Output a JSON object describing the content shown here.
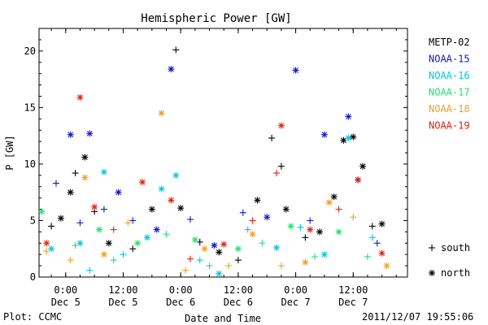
{
  "chart_data": {
    "type": "scatter",
    "title": "Hemispheric Power [GW]",
    "xlabel": "Date and Time",
    "ylabel": "P [GW]",
    "ylim": [
      0,
      22
    ],
    "xlim": [
      "2011-12-04 18:26",
      "2011-12-07 23:20"
    ],
    "yticks": [
      0,
      5,
      10,
      15,
      20
    ],
    "xticks": [
      {
        "time": "2011-12-05 00:00",
        "line1": "0:00",
        "line2": "Dec 5"
      },
      {
        "time": "2011-12-05 12:00",
        "line1": "12:00",
        "line2": "Dec 5"
      },
      {
        "time": "2011-12-06 00:00",
        "line1": "0:00",
        "line2": "Dec 6"
      },
      {
        "time": "2011-12-06 12:00",
        "line1": "12:00",
        "line2": "Dec 6"
      },
      {
        "time": "2011-12-07 00:00",
        "line1": "0:00",
        "line2": "Dec 7"
      },
      {
        "time": "2011-12-07 12:00",
        "line1": "12:00",
        "line2": "Dec 7"
      }
    ],
    "hemisphere_key": [
      {
        "symbol": "+",
        "label": "south"
      },
      {
        "symbol": "*",
        "label": "north"
      }
    ],
    "series": [
      {
        "name": "METP-02",
        "color": "#000000",
        "points": [
          {
            "x": "2011-12-04 21:00",
            "y": 4.5,
            "h": "south"
          },
          {
            "x": "2011-12-04 23:00",
            "y": 5.2,
            "h": "north"
          },
          {
            "x": "2011-12-05 01:00",
            "y": 7.5,
            "h": "north"
          },
          {
            "x": "2011-12-05 02:00",
            "y": 9.2,
            "h": "south"
          },
          {
            "x": "2011-12-05 04:00",
            "y": 10.6,
            "h": "north"
          },
          {
            "x": "2011-12-05 06:00",
            "y": 5.8,
            "h": "south"
          },
          {
            "x": "2011-12-05 09:00",
            "y": 3.0,
            "h": "north"
          },
          {
            "x": "2011-12-05 14:00",
            "y": 2.5,
            "h": "south"
          },
          {
            "x": "2011-12-05 18:00",
            "y": 6.0,
            "h": "north"
          },
          {
            "x": "2011-12-05 23:00",
            "y": 20.1,
            "h": "south"
          },
          {
            "x": "2011-12-06 00:00",
            "y": 6.1,
            "h": "north"
          },
          {
            "x": "2011-12-06 04:00",
            "y": 3.1,
            "h": "south"
          },
          {
            "x": "2011-12-06 08:00",
            "y": 2.2,
            "h": "north"
          },
          {
            "x": "2011-12-06 12:00",
            "y": 1.5,
            "h": "south"
          },
          {
            "x": "2011-12-06 16:00",
            "y": 6.8,
            "h": "north"
          },
          {
            "x": "2011-12-06 19:00",
            "y": 12.3,
            "h": "south"
          },
          {
            "x": "2011-12-06 21:00",
            "y": 9.8,
            "h": "south"
          },
          {
            "x": "2011-12-06 22:00",
            "y": 6.0,
            "h": "north"
          },
          {
            "x": "2011-12-07 02:00",
            "y": 3.5,
            "h": "south"
          },
          {
            "x": "2011-12-07 05:00",
            "y": 4.0,
            "h": "north"
          },
          {
            "x": "2011-12-07 08:00",
            "y": 7.1,
            "h": "north"
          },
          {
            "x": "2011-12-07 10:00",
            "y": 12.1,
            "h": "north"
          },
          {
            "x": "2011-12-07 12:00",
            "y": 12.4,
            "h": "north"
          },
          {
            "x": "2011-12-07 14:00",
            "y": 9.8,
            "h": "north"
          },
          {
            "x": "2011-12-07 16:00",
            "y": 4.5,
            "h": "south"
          },
          {
            "x": "2011-12-07 18:00",
            "y": 4.7,
            "h": "north"
          }
        ]
      },
      {
        "name": "NOAA-15",
        "color": "#1018c8",
        "points": [
          {
            "x": "2011-12-04 22:00",
            "y": 8.3,
            "h": "south"
          },
          {
            "x": "2011-12-05 01:00",
            "y": 12.6,
            "h": "north"
          },
          {
            "x": "2011-12-05 03:00",
            "y": 4.8,
            "h": "south"
          },
          {
            "x": "2011-12-05 05:00",
            "y": 12.7,
            "h": "north"
          },
          {
            "x": "2011-12-05 08:00",
            "y": 6.0,
            "h": "south"
          },
          {
            "x": "2011-12-05 11:00",
            "y": 7.5,
            "h": "north"
          },
          {
            "x": "2011-12-05 14:00",
            "y": 5.0,
            "h": "south"
          },
          {
            "x": "2011-12-05 19:00",
            "y": 4.2,
            "h": "north"
          },
          {
            "x": "2011-12-05 22:00",
            "y": 18.4,
            "h": "north"
          },
          {
            "x": "2011-12-06 02:00",
            "y": 5.1,
            "h": "south"
          },
          {
            "x": "2011-12-06 07:00",
            "y": 2.8,
            "h": "north"
          },
          {
            "x": "2011-12-06 13:00",
            "y": 5.7,
            "h": "south"
          },
          {
            "x": "2011-12-06 18:00",
            "y": 5.3,
            "h": "north"
          },
          {
            "x": "2011-12-07 00:00",
            "y": 18.3,
            "h": "north"
          },
          {
            "x": "2011-12-07 03:00",
            "y": 5.0,
            "h": "south"
          },
          {
            "x": "2011-12-07 06:00",
            "y": 12.6,
            "h": "north"
          },
          {
            "x": "2011-12-07 11:00",
            "y": 14.2,
            "h": "north"
          },
          {
            "x": "2011-12-07 13:00",
            "y": 8.6,
            "h": "north"
          },
          {
            "x": "2011-12-07 17:00",
            "y": 3.0,
            "h": "south"
          }
        ]
      },
      {
        "name": "NOAA-16",
        "color": "#00c8e0",
        "points": [
          {
            "x": "2011-12-04 21:00",
            "y": 2.5,
            "h": "north"
          },
          {
            "x": "2011-12-05 03:00",
            "y": 3.0,
            "h": "north"
          },
          {
            "x": "2011-12-05 05:00",
            "y": 0.6,
            "h": "south"
          },
          {
            "x": "2011-12-05 08:00",
            "y": 9.3,
            "h": "north"
          },
          {
            "x": "2011-12-05 12:00",
            "y": 2.0,
            "h": "south"
          },
          {
            "x": "2011-12-05 17:00",
            "y": 3.5,
            "h": "north"
          },
          {
            "x": "2011-12-05 20:00",
            "y": 7.8,
            "h": "north"
          },
          {
            "x": "2011-12-05 23:00",
            "y": 9.0,
            "h": "north"
          },
          {
            "x": "2011-12-06 04:00",
            "y": 1.5,
            "h": "south"
          },
          {
            "x": "2011-12-06 08:00",
            "y": 0.3,
            "h": "north"
          },
          {
            "x": "2011-12-06 14:00",
            "y": 4.2,
            "h": "south"
          },
          {
            "x": "2011-12-06 20:00",
            "y": 2.6,
            "h": "north"
          },
          {
            "x": "2011-12-07 01:00",
            "y": 4.4,
            "h": "south"
          },
          {
            "x": "2011-12-07 06:00",
            "y": 2.0,
            "h": "north"
          },
          {
            "x": "2011-12-07 11:00",
            "y": 12.3,
            "h": "north"
          },
          {
            "x": "2011-12-07 16:00",
            "y": 3.5,
            "h": "south"
          }
        ]
      },
      {
        "name": "NOAA-17",
        "color": "#20e070",
        "points": [
          {
            "x": "2011-12-04 19:00",
            "y": 5.8,
            "h": "north"
          },
          {
            "x": "2011-12-05 02:00",
            "y": 2.8,
            "h": "south"
          },
          {
            "x": "2011-12-05 07:00",
            "y": 4.2,
            "h": "north"
          },
          {
            "x": "2011-12-05 10:00",
            "y": 1.5,
            "h": "south"
          },
          {
            "x": "2011-12-05 15:00",
            "y": 3.0,
            "h": "north"
          },
          {
            "x": "2011-12-05 21:00",
            "y": 3.8,
            "h": "south"
          },
          {
            "x": "2011-12-06 03:00",
            "y": 3.3,
            "h": "north"
          },
          {
            "x": "2011-12-06 06:00",
            "y": 1.0,
            "h": "south"
          },
          {
            "x": "2011-12-06 12:00",
            "y": 2.5,
            "h": "north"
          },
          {
            "x": "2011-12-06 17:00",
            "y": 3.0,
            "h": "south"
          },
          {
            "x": "2011-12-06 23:00",
            "y": 4.5,
            "h": "north"
          },
          {
            "x": "2011-12-07 04:00",
            "y": 1.8,
            "h": "south"
          },
          {
            "x": "2011-12-07 09:00",
            "y": 4.0,
            "h": "north"
          },
          {
            "x": "2011-12-07 15:00",
            "y": 1.8,
            "h": "south"
          }
        ]
      },
      {
        "name": "NOAA-18",
        "color": "#f0a020",
        "points": [
          {
            "x": "2011-12-04 20:00",
            "y": 2.3,
            "h": "south"
          },
          {
            "x": "2011-12-05 01:00",
            "y": 1.5,
            "h": "south"
          },
          {
            "x": "2011-12-05 04:00",
            "y": 8.8,
            "h": "north"
          },
          {
            "x": "2011-12-05 08:00",
            "y": 2.0,
            "h": "north"
          },
          {
            "x": "2011-12-05 13:00",
            "y": 4.8,
            "h": "south"
          },
          {
            "x": "2011-12-05 20:00",
            "y": 14.5,
            "h": "north"
          },
          {
            "x": "2011-12-06 01:00",
            "y": 0.6,
            "h": "south"
          },
          {
            "x": "2011-12-06 05:00",
            "y": 2.5,
            "h": "north"
          },
          {
            "x": "2011-12-06 10:00",
            "y": 1.0,
            "h": "south"
          },
          {
            "x": "2011-12-06 15:00",
            "y": 3.8,
            "h": "north"
          },
          {
            "x": "2011-12-06 21:00",
            "y": 1.0,
            "h": "south"
          },
          {
            "x": "2011-12-07 02:00",
            "y": 1.3,
            "h": "north"
          },
          {
            "x": "2011-12-07 07:00",
            "y": 6.6,
            "h": "north"
          },
          {
            "x": "2011-12-07 12:00",
            "y": 5.3,
            "h": "south"
          },
          {
            "x": "2011-12-07 19:00",
            "y": 1.0,
            "h": "north"
          }
        ]
      },
      {
        "name": "NOAA-19",
        "color": "#e02010",
        "points": [
          {
            "x": "2011-12-04 20:00",
            "y": 3.0,
            "h": "north"
          },
          {
            "x": "2011-12-05 03:00",
            "y": 15.9,
            "h": "north"
          },
          {
            "x": "2011-12-05 06:00",
            "y": 6.2,
            "h": "north"
          },
          {
            "x": "2011-12-05 10:00",
            "y": 4.2,
            "h": "south"
          },
          {
            "x": "2011-12-05 16:00",
            "y": 8.4,
            "h": "north"
          },
          {
            "x": "2011-12-05 22:00",
            "y": 6.8,
            "h": "north"
          },
          {
            "x": "2011-12-06 02:00",
            "y": 1.6,
            "h": "south"
          },
          {
            "x": "2011-12-06 09:00",
            "y": 2.9,
            "h": "north"
          },
          {
            "x": "2011-12-06 15:00",
            "y": 5.0,
            "h": "south"
          },
          {
            "x": "2011-12-06 20:00",
            "y": 9.2,
            "h": "south"
          },
          {
            "x": "2011-12-06 21:00",
            "y": 13.4,
            "h": "north"
          },
          {
            "x": "2011-12-07 03:00",
            "y": 4.2,
            "h": "north"
          },
          {
            "x": "2011-12-07 09:00",
            "y": 6.0,
            "h": "south"
          },
          {
            "x": "2011-12-07 13:00",
            "y": 8.6,
            "h": "north"
          },
          {
            "x": "2011-12-07 18:00",
            "y": 2.1,
            "h": "north"
          }
        ]
      }
    ]
  },
  "footer": {
    "plot_credit": "Plot: CCMC",
    "timestamp": "2011/12/07 19:55:06"
  }
}
